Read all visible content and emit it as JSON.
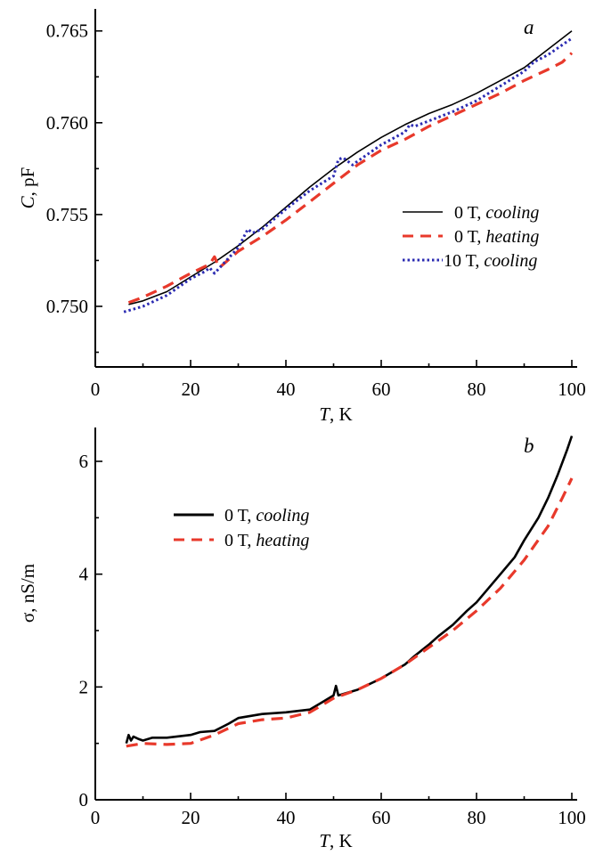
{
  "chart_data": [
    {
      "type": "line",
      "panel_label": "a",
      "xlabel_var": "T",
      "xlabel_unit": ", K",
      "ylabel_var": "C",
      "ylabel_unit": ", pF",
      "xlim": [
        0,
        100
      ],
      "ylim": [
        0.7467,
        0.7662
      ],
      "xticks": [
        0,
        20,
        40,
        60,
        80,
        100
      ],
      "xtick_labels": [
        "0",
        "20",
        "40",
        "60",
        "80",
        "100"
      ],
      "yticks": [
        0.75,
        0.755,
        0.76,
        0.765
      ],
      "ytick_labels": [
        "0.750",
        "0.755",
        "0.760",
        "0.765"
      ],
      "legend_position": "center-right",
      "series": [
        {
          "name": "0 T, cooling",
          "legend_prefix": "0 T, ",
          "legend_italic": "cooling",
          "color": "#000000",
          "style": "solid",
          "x": [
            7,
            10,
            15,
            20,
            25,
            30,
            35,
            40,
            45,
            50,
            55,
            60,
            65,
            70,
            75,
            80,
            85,
            90,
            95,
            100
          ],
          "y": [
            0.7501,
            0.7503,
            0.7508,
            0.7516,
            0.7524,
            0.7533,
            0.7543,
            0.7554,
            0.7565,
            0.7575,
            0.7584,
            0.7592,
            0.7599,
            0.7605,
            0.761,
            0.7616,
            0.7623,
            0.763,
            0.764,
            0.765
          ]
        },
        {
          "name": "0 T, heating",
          "legend_prefix": "0 T, ",
          "legend_italic": "heating",
          "color": "#e8392b",
          "style": "dashed",
          "x": [
            7,
            10,
            15,
            20,
            24,
            25,
            26,
            30,
            35,
            40,
            45,
            50,
            55,
            60,
            65,
            70,
            75,
            80,
            85,
            90,
            95,
            98,
            100
          ],
          "y": [
            0.7502,
            0.7505,
            0.7511,
            0.7518,
            0.7523,
            0.7527,
            0.7521,
            0.753,
            0.7538,
            0.7547,
            0.7557,
            0.7567,
            0.7577,
            0.7585,
            0.7591,
            0.7598,
            0.7604,
            0.761,
            0.7616,
            0.7623,
            0.7629,
            0.7633,
            0.7638
          ]
        },
        {
          "name": "10 T, cooling",
          "legend_prefix": "10 T, ",
          "legend_italic": "cooling",
          "color": "#2b2bb2",
          "style": "dotted",
          "x": [
            6,
            10,
            15,
            20,
            23,
            24,
            25,
            30,
            32,
            33,
            35,
            40,
            45,
            50,
            51,
            52,
            54,
            55,
            60,
            65,
            66,
            67,
            70,
            75,
            80,
            85,
            90,
            92,
            95,
            100
          ],
          "y": [
            0.7497,
            0.75,
            0.7506,
            0.7515,
            0.7519,
            0.7521,
            0.7518,
            0.7532,
            0.7542,
            0.754,
            0.7542,
            0.7553,
            0.7563,
            0.7571,
            0.758,
            0.7581,
            0.7577,
            0.7579,
            0.7588,
            0.7595,
            0.7599,
            0.7598,
            0.7601,
            0.7606,
            0.7612,
            0.762,
            0.7628,
            0.7633,
            0.7637,
            0.7646
          ]
        }
      ]
    },
    {
      "type": "line",
      "panel_label": "b",
      "xlabel_var": "T",
      "xlabel_unit": ", K",
      "ylabel": "σ, nS/m",
      "xlim": [
        0,
        100
      ],
      "ylim": [
        0,
        6.6
      ],
      "xticks": [
        0,
        20,
        40,
        60,
        80,
        100
      ],
      "xtick_labels": [
        "0",
        "20",
        "40",
        "60",
        "80",
        "100"
      ],
      "yticks": [
        0,
        2,
        4,
        6
      ],
      "ytick_labels": [
        "0",
        "2",
        "4",
        "6"
      ],
      "legend_position": "top-left",
      "series": [
        {
          "name": "0 T, cooling",
          "legend_prefix": "0 T, ",
          "legend_italic": "cooling",
          "color": "#000000",
          "style": "solid",
          "x": [
            6.5,
            7,
            7.5,
            8,
            9,
            10,
            12,
            15,
            20,
            22,
            25,
            28,
            30,
            35,
            40,
            45,
            48,
            50,
            50.5,
            51,
            55,
            60,
            65,
            67,
            70,
            72,
            75,
            78,
            80,
            82,
            85,
            88,
            90,
            93,
            95,
            97,
            99,
            100
          ],
          "y": [
            1.0,
            1.15,
            1.05,
            1.12,
            1.08,
            1.05,
            1.1,
            1.1,
            1.15,
            1.2,
            1.22,
            1.35,
            1.45,
            1.52,
            1.55,
            1.6,
            1.75,
            1.85,
            2.02,
            1.85,
            1.95,
            2.15,
            2.4,
            2.55,
            2.75,
            2.9,
            3.1,
            3.35,
            3.5,
            3.7,
            4.0,
            4.3,
            4.6,
            5.0,
            5.35,
            5.75,
            6.2,
            6.45
          ]
        },
        {
          "name": "0 T, heating",
          "legend_prefix": "0 T, ",
          "legend_italic": "heating",
          "color": "#e8392b",
          "style": "dashed",
          "x": [
            6.5,
            10,
            15,
            20,
            25,
            30,
            35,
            40,
            45,
            50,
            55,
            60,
            65,
            70,
            75,
            80,
            85,
            90,
            95,
            98,
            100
          ],
          "y": [
            0.95,
            1.0,
            0.98,
            1.0,
            1.15,
            1.35,
            1.42,
            1.45,
            1.55,
            1.8,
            1.95,
            2.15,
            2.4,
            2.7,
            3.0,
            3.35,
            3.75,
            4.25,
            4.85,
            5.35,
            5.7
          ]
        }
      ]
    }
  ]
}
